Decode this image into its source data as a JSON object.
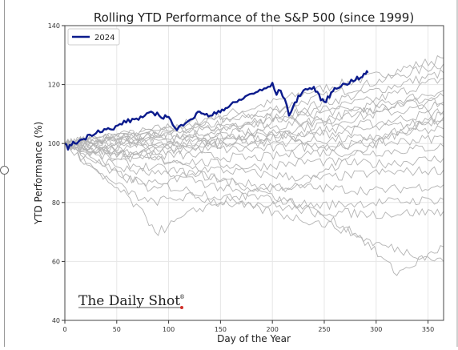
{
  "chart_data": {
    "type": "line",
    "title": "Rolling YTD Performance of the S&P 500 (since 1999)",
    "xlabel": "Day of the Year",
    "ylabel": "YTD Performance (%)",
    "xlim": [
      0,
      365
    ],
    "ylim": [
      40,
      140
    ],
    "xticks": [
      0,
      50,
      100,
      150,
      200,
      250,
      300,
      350
    ],
    "yticks": [
      40,
      60,
      80,
      100,
      120,
      140
    ],
    "grid": true,
    "legend": {
      "position": "top-left",
      "entries": [
        "2024"
      ]
    },
    "highlight": {
      "name": "2024",
      "color": "#0a1a8c",
      "points": [
        [
          0,
          100
        ],
        [
          3,
          98.5
        ],
        [
          8,
          100
        ],
        [
          15,
          101
        ],
        [
          20,
          102
        ],
        [
          30,
          104
        ],
        [
          40,
          105
        ],
        [
          45,
          104.5
        ],
        [
          55,
          107
        ],
        [
          65,
          108
        ],
        [
          75,
          109
        ],
        [
          85,
          110.5
        ],
        [
          95,
          109
        ],
        [
          100,
          109.5
        ],
        [
          104,
          106
        ],
        [
          108,
          104.5
        ],
        [
          112,
          106
        ],
        [
          118,
          108
        ],
        [
          125,
          109
        ],
        [
          130,
          111
        ],
        [
          135,
          110
        ],
        [
          140,
          109
        ],
        [
          148,
          111
        ],
        [
          155,
          112
        ],
        [
          160,
          113
        ],
        [
          170,
          115
        ],
        [
          180,
          117
        ],
        [
          190,
          118
        ],
        [
          200,
          120
        ],
        [
          204,
          117
        ],
        [
          208,
          118
        ],
        [
          212,
          115
        ],
        [
          216,
          110
        ],
        [
          220,
          112
        ],
        [
          225,
          116
        ],
        [
          230,
          118
        ],
        [
          240,
          119
        ],
        [
          245,
          116
        ],
        [
          250,
          114
        ],
        [
          255,
          116
        ],
        [
          260,
          119
        ],
        [
          270,
          120
        ],
        [
          280,
          122
        ],
        [
          285,
          122
        ],
        [
          290,
          124
        ],
        [
          292,
          124
        ]
      ]
    },
    "background_series": {
      "color": "#b3b3b3",
      "series": [
        [
          [
            0,
            100
          ],
          [
            60,
            103
          ],
          [
            120,
            107
          ],
          [
            180,
            112
          ],
          [
            240,
            118
          ],
          [
            300,
            123
          ],
          [
            365,
            129
          ]
        ],
        [
          [
            0,
            100
          ],
          [
            60,
            102
          ],
          [
            120,
            106
          ],
          [
            180,
            110
          ],
          [
            240,
            115
          ],
          [
            300,
            121
          ],
          [
            365,
            127
          ]
        ],
        [
          [
            0,
            100
          ],
          [
            60,
            103
          ],
          [
            120,
            105
          ],
          [
            180,
            109
          ],
          [
            240,
            113
          ],
          [
            300,
            118
          ],
          [
            365,
            124
          ]
        ],
        [
          [
            0,
            100
          ],
          [
            60,
            101
          ],
          [
            120,
            104
          ],
          [
            180,
            108
          ],
          [
            240,
            111
          ],
          [
            300,
            115
          ],
          [
            365,
            122
          ]
        ],
        [
          [
            0,
            100
          ],
          [
            60,
            102
          ],
          [
            120,
            103
          ],
          [
            180,
            106
          ],
          [
            240,
            110
          ],
          [
            300,
            113
          ],
          [
            365,
            118
          ]
        ],
        [
          [
            0,
            100
          ],
          [
            60,
            101
          ],
          [
            120,
            102
          ],
          [
            180,
            104
          ],
          [
            240,
            108
          ],
          [
            300,
            112
          ],
          [
            365,
            116
          ]
        ],
        [
          [
            0,
            100
          ],
          [
            60,
            103
          ],
          [
            120,
            102
          ],
          [
            180,
            103
          ],
          [
            240,
            106
          ],
          [
            300,
            110
          ],
          [
            365,
            113
          ]
        ],
        [
          [
            0,
            100
          ],
          [
            60,
            99
          ],
          [
            120,
            101
          ],
          [
            180,
            102
          ],
          [
            240,
            104
          ],
          [
            300,
            107
          ],
          [
            365,
            111
          ]
        ],
        [
          [
            0,
            100
          ],
          [
            60,
            98
          ],
          [
            120,
            100
          ],
          [
            180,
            101
          ],
          [
            240,
            103
          ],
          [
            300,
            105
          ],
          [
            365,
            108
          ]
        ],
        [
          [
            0,
            100
          ],
          [
            60,
            100
          ],
          [
            120,
            99
          ],
          [
            180,
            100
          ],
          [
            240,
            101
          ],
          [
            300,
            102
          ],
          [
            365,
            105
          ]
        ],
        [
          [
            0,
            100
          ],
          [
            60,
            97
          ],
          [
            120,
            98
          ],
          [
            180,
            98
          ],
          [
            240,
            99
          ],
          [
            300,
            100
          ],
          [
            365,
            102
          ]
        ],
        [
          [
            0,
            100
          ],
          [
            60,
            96
          ],
          [
            120,
            96
          ],
          [
            180,
            95
          ],
          [
            240,
            97
          ],
          [
            300,
            97
          ],
          [
            365,
            99
          ]
        ],
        [
          [
            0,
            100
          ],
          [
            60,
            95
          ],
          [
            120,
            94
          ],
          [
            180,
            92
          ],
          [
            240,
            94
          ],
          [
            300,
            93
          ],
          [
            365,
            95
          ]
        ],
        [
          [
            0,
            100
          ],
          [
            60,
            97
          ],
          [
            120,
            92
          ],
          [
            180,
            90
          ],
          [
            240,
            88
          ],
          [
            300,
            90
          ],
          [
            365,
            91
          ]
        ],
        [
          [
            0,
            100
          ],
          [
            60,
            93
          ],
          [
            120,
            90
          ],
          [
            180,
            86
          ],
          [
            240,
            85
          ],
          [
            300,
            84
          ],
          [
            365,
            86
          ]
        ],
        [
          [
            0,
            100
          ],
          [
            60,
            91
          ],
          [
            120,
            88
          ],
          [
            180,
            82
          ],
          [
            240,
            79
          ],
          [
            300,
            80
          ],
          [
            365,
            81
          ]
        ],
        [
          [
            0,
            100
          ],
          [
            60,
            88
          ],
          [
            120,
            84
          ],
          [
            180,
            80
          ],
          [
            240,
            77
          ],
          [
            300,
            76
          ],
          [
            365,
            77
          ]
        ],
        [
          [
            0,
            100
          ],
          [
            40,
            88
          ],
          [
            80,
            80
          ],
          [
            120,
            82
          ],
          [
            170,
            79
          ],
          [
            220,
            75
          ],
          [
            260,
            72
          ],
          [
            300,
            66
          ],
          [
            365,
            60
          ]
        ],
        [
          [
            0,
            100
          ],
          [
            40,
            92
          ],
          [
            80,
            85
          ],
          [
            120,
            90
          ],
          [
            170,
            86
          ],
          [
            220,
            80
          ],
          [
            280,
            70
          ],
          [
            320,
            56
          ],
          [
            365,
            65
          ]
        ],
        [
          [
            0,
            100
          ],
          [
            30,
            90
          ],
          [
            60,
            82
          ],
          [
            90,
            70
          ],
          [
            130,
            78
          ],
          [
            180,
            83
          ],
          [
            230,
            86
          ],
          [
            300,
            100
          ],
          [
            365,
            110
          ]
        ],
        [
          [
            0,
            100
          ],
          [
            50,
            96
          ],
          [
            100,
            98
          ],
          [
            150,
            101
          ],
          [
            200,
            104
          ],
          [
            250,
            98
          ],
          [
            300,
            102
          ],
          [
            365,
            109
          ]
        ],
        [
          [
            0,
            100
          ],
          [
            50,
            102
          ],
          [
            100,
            104
          ],
          [
            150,
            105
          ],
          [
            200,
            108
          ],
          [
            250,
            107
          ],
          [
            300,
            112
          ],
          [
            365,
            114
          ]
        ]
      ]
    }
  },
  "watermark": {
    "text": "The Daily Shot",
    "mark": "®"
  }
}
